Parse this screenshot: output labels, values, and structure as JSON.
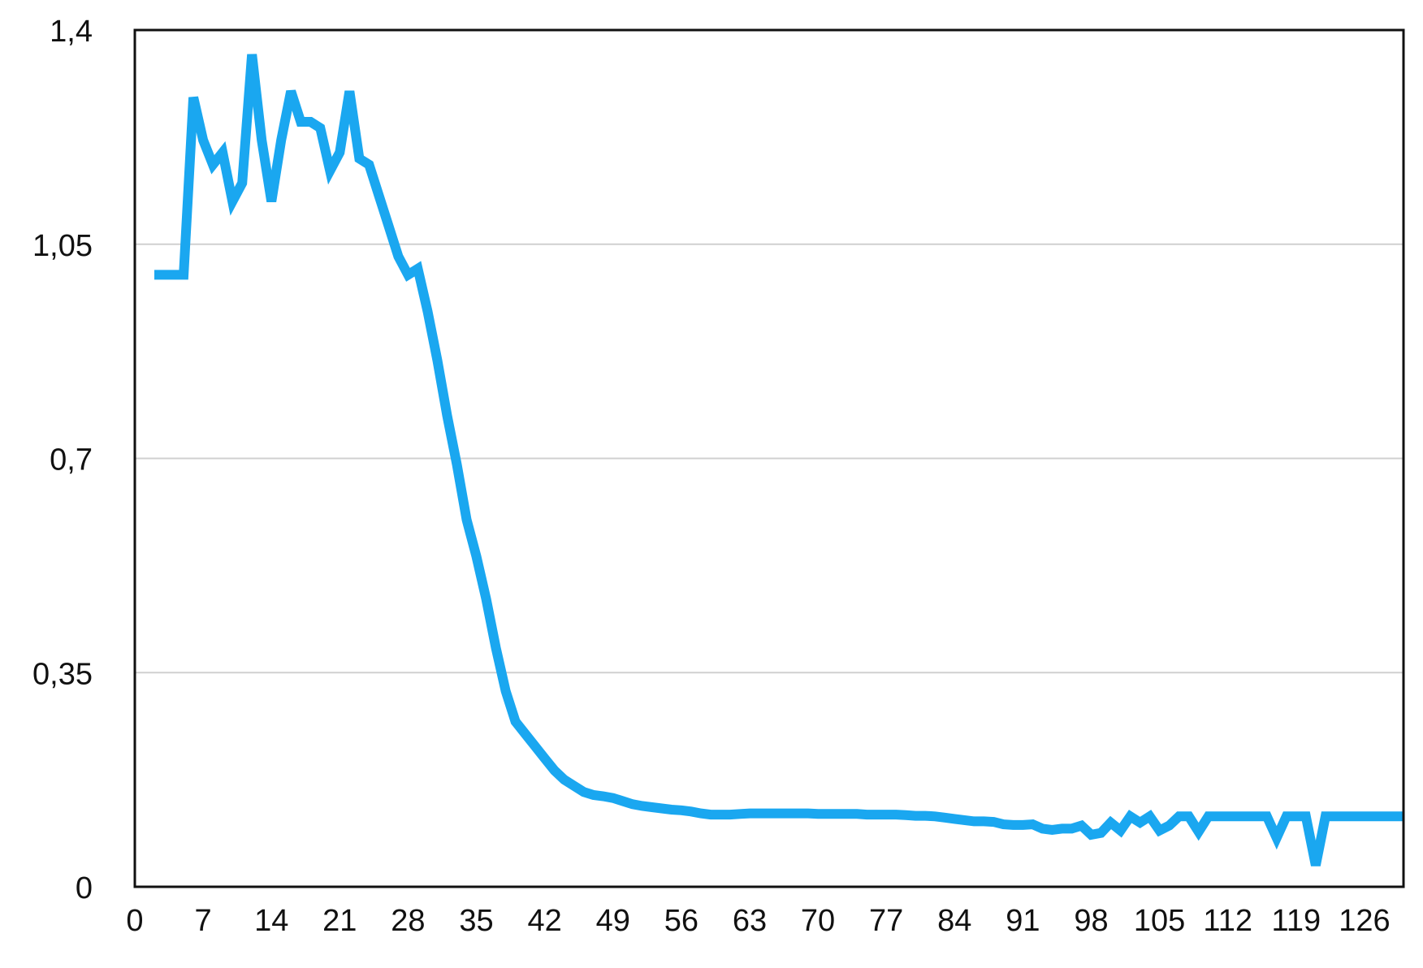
{
  "chart_data": {
    "type": "line",
    "title": "",
    "xlabel": "",
    "ylabel": "",
    "xlim": [
      0,
      130
    ],
    "ylim": [
      0,
      1.4
    ],
    "x_ticks": [
      0,
      7,
      14,
      21,
      28,
      35,
      42,
      49,
      56,
      63,
      70,
      77,
      84,
      91,
      98,
      105,
      112,
      119,
      126
    ],
    "x_tick_labels": [
      "0",
      "7",
      "14",
      "21",
      "28",
      "35",
      "42",
      "49",
      "56",
      "63",
      "70",
      "77",
      "84",
      "91",
      "98",
      "105",
      "112",
      "119",
      "126"
    ],
    "y_ticks": [
      0,
      0.35,
      0.7,
      1.05,
      1.4
    ],
    "y_tick_labels": [
      "0",
      "0,35",
      "0,7",
      "1,05",
      "1,4"
    ],
    "grid": "horizontal",
    "legend": "none",
    "series": [
      {
        "color": "#1aa7f0",
        "points": [
          [
            2,
            1.0
          ],
          [
            3,
            1.0
          ],
          [
            4,
            1.0
          ],
          [
            5,
            1.0
          ],
          [
            6,
            1.29
          ],
          [
            7,
            1.22
          ],
          [
            8,
            1.18
          ],
          [
            9,
            1.2
          ],
          [
            10,
            1.12
          ],
          [
            11,
            1.15
          ],
          [
            12,
            1.36
          ],
          [
            13,
            1.22
          ],
          [
            14,
            1.12
          ],
          [
            15,
            1.22
          ],
          [
            16,
            1.3
          ],
          [
            17,
            1.25
          ],
          [
            18,
            1.25
          ],
          [
            19,
            1.24
          ],
          [
            20,
            1.17
          ],
          [
            21,
            1.2
          ],
          [
            22,
            1.3
          ],
          [
            23,
            1.19
          ],
          [
            24,
            1.18
          ],
          [
            25,
            1.13
          ],
          [
            26,
            1.08
          ],
          [
            27,
            1.03
          ],
          [
            28,
            1.0
          ],
          [
            29,
            1.01
          ],
          [
            30,
            0.94
          ],
          [
            31,
            0.86
          ],
          [
            32,
            0.77
          ],
          [
            33,
            0.69
          ],
          [
            34,
            0.6
          ],
          [
            35,
            0.54
          ],
          [
            36,
            0.47
          ],
          [
            37,
            0.39
          ],
          [
            38,
            0.32
          ],
          [
            39,
            0.27
          ],
          [
            40,
            0.25
          ],
          [
            41,
            0.23
          ],
          [
            42,
            0.21
          ],
          [
            43,
            0.19
          ],
          [
            44,
            0.175
          ],
          [
            45,
            0.165
          ],
          [
            46,
            0.155
          ],
          [
            47,
            0.15
          ],
          [
            48,
            0.148
          ],
          [
            49,
            0.145
          ],
          [
            50,
            0.14
          ],
          [
            51,
            0.135
          ],
          [
            52,
            0.132
          ],
          [
            53,
            0.13
          ],
          [
            54,
            0.128
          ],
          [
            55,
            0.126
          ],
          [
            56,
            0.125
          ],
          [
            57,
            0.123
          ],
          [
            58,
            0.12
          ],
          [
            59,
            0.118
          ],
          [
            60,
            0.118
          ],
          [
            61,
            0.118
          ],
          [
            62,
            0.119
          ],
          [
            63,
            0.12
          ],
          [
            64,
            0.12
          ],
          [
            65,
            0.12
          ],
          [
            66,
            0.12
          ],
          [
            67,
            0.12
          ],
          [
            68,
            0.12
          ],
          [
            69,
            0.12
          ],
          [
            70,
            0.119
          ],
          [
            71,
            0.119
          ],
          [
            72,
            0.119
          ],
          [
            73,
            0.119
          ],
          [
            74,
            0.119
          ],
          [
            75,
            0.118
          ],
          [
            76,
            0.118
          ],
          [
            77,
            0.118
          ],
          [
            78,
            0.118
          ],
          [
            79,
            0.117
          ],
          [
            80,
            0.116
          ],
          [
            81,
            0.116
          ],
          [
            82,
            0.115
          ],
          [
            83,
            0.113
          ],
          [
            84,
            0.111
          ],
          [
            85,
            0.109
          ],
          [
            86,
            0.107
          ],
          [
            87,
            0.107
          ],
          [
            88,
            0.106
          ],
          [
            89,
            0.102
          ],
          [
            90,
            0.101
          ],
          [
            91,
            0.101
          ],
          [
            92,
            0.102
          ],
          [
            93,
            0.095
          ],
          [
            94,
            0.093
          ],
          [
            95,
            0.095
          ],
          [
            96,
            0.095
          ],
          [
            97,
            0.1
          ],
          [
            98,
            0.085
          ],
          [
            99,
            0.088
          ],
          [
            100,
            0.105
          ],
          [
            101,
            0.092
          ],
          [
            102,
            0.115
          ],
          [
            103,
            0.105
          ],
          [
            104,
            0.115
          ],
          [
            105,
            0.092
          ],
          [
            106,
            0.1
          ],
          [
            107,
            0.115
          ],
          [
            108,
            0.115
          ],
          [
            109,
            0.09
          ],
          [
            110,
            0.115
          ],
          [
            111,
            0.115
          ],
          [
            112,
            0.115
          ],
          [
            113,
            0.115
          ],
          [
            114,
            0.115
          ],
          [
            115,
            0.115
          ],
          [
            116,
            0.115
          ],
          [
            117,
            0.08
          ],
          [
            118,
            0.115
          ],
          [
            119,
            0.115
          ],
          [
            120,
            0.115
          ],
          [
            121,
            0.035
          ],
          [
            122,
            0.115
          ],
          [
            123,
            0.115
          ],
          [
            124,
            0.115
          ],
          [
            125,
            0.115
          ],
          [
            126,
            0.115
          ],
          [
            127,
            0.115
          ],
          [
            128,
            0.115
          ],
          [
            129,
            0.115
          ],
          [
            130,
            0.115
          ]
        ]
      }
    ]
  }
}
